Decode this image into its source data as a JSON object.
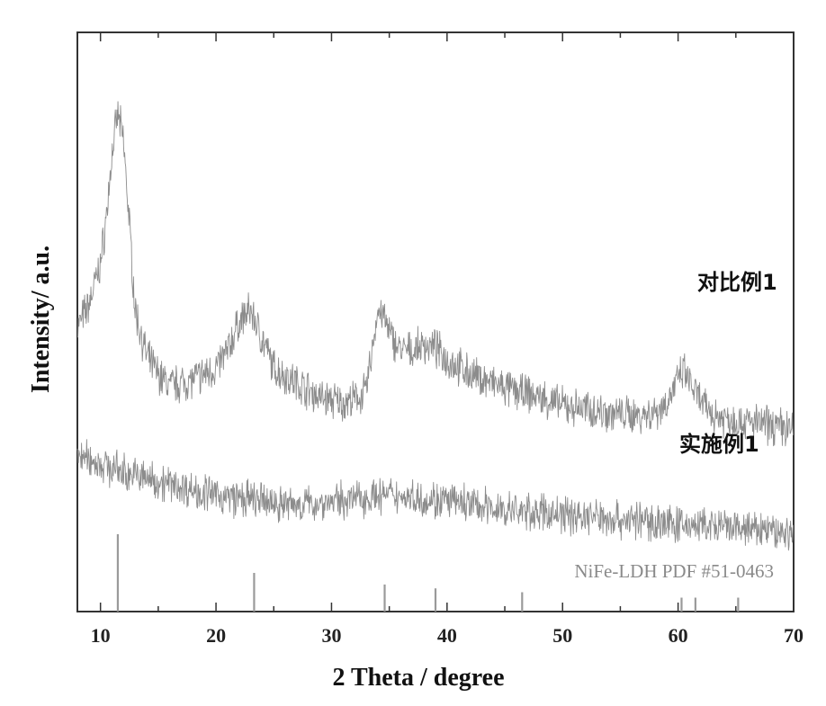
{
  "chart_data": {
    "type": "line",
    "title": "",
    "xlabel": "2 Theta / degree",
    "ylabel": "Intensity/ a.u.",
    "xlim": [
      8,
      70
    ],
    "ylim": [
      0,
      100
    ],
    "x_ticks": [
      10,
      20,
      30,
      40,
      50,
      60,
      70
    ],
    "y_ticks": [],
    "grid": false,
    "colors": {
      "series": "#8c8c8c",
      "reference": "#9a9a9a",
      "axis": "#333333"
    },
    "series": [
      {
        "name": "对比例1",
        "x": [
          8,
          9,
          10,
          10.5,
          11,
          11.5,
          12,
          12.5,
          13,
          14,
          15,
          16,
          18,
          19,
          20,
          21,
          22,
          23,
          24,
          25,
          27,
          29,
          31,
          32,
          33,
          33.5,
          34,
          34.5,
          35,
          36,
          37,
          38,
          39,
          40,
          42,
          45,
          48,
          50,
          52,
          55,
          57,
          58,
          59,
          60,
          60.5,
          61,
          62,
          63,
          65,
          67,
          70
        ],
        "values": [
          49,
          53,
          60,
          68,
          79,
          86,
          81,
          67,
          52,
          44,
          41,
          39,
          40,
          41,
          42,
          45,
          50,
          52,
          47,
          42,
          39.5,
          37,
          36,
          36.5,
          38,
          45,
          52,
          51,
          48,
          45,
          45,
          46,
          45.5,
          43.5,
          41,
          38.5,
          37,
          35.5,
          35,
          34,
          34,
          34.5,
          36,
          40,
          41.5,
          39.5,
          36,
          34,
          33,
          32.5,
          31.5
        ]
      },
      {
        "name": "实施例1",
        "x": [
          8,
          10,
          12,
          14,
          16,
          18,
          20,
          22,
          24,
          26,
          28,
          30,
          32,
          34,
          36,
          38,
          40,
          42,
          45,
          48,
          50,
          52,
          55,
          58,
          60,
          62,
          65,
          68,
          70
        ],
        "values": [
          27,
          25.5,
          24,
          23,
          22,
          21,
          20,
          19.5,
          19,
          18.5,
          18.5,
          19,
          19.5,
          20,
          20,
          19.5,
          19,
          18.5,
          17.5,
          17,
          16.8,
          16.5,
          16,
          15.5,
          15,
          14.8,
          14.2,
          14,
          13.5
        ]
      }
    ],
    "reference": {
      "name": "NiFe-LDH  PDF  #51-0463",
      "positions": [
        11.5,
        23.3,
        34.6,
        39.0,
        46.5,
        60.3,
        61.5,
        65.2
      ],
      "intensities": [
        100,
        50,
        35,
        30,
        25,
        18,
        18,
        18
      ]
    }
  }
}
